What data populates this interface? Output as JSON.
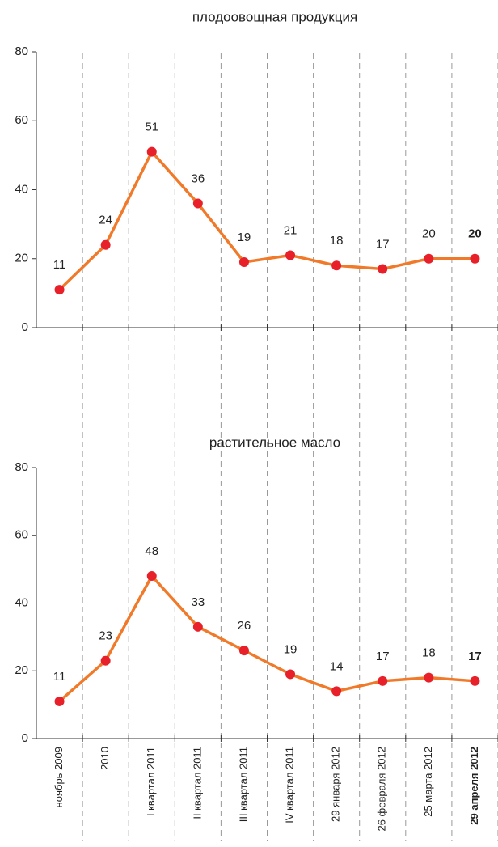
{
  "chart_data": [
    {
      "type": "line",
      "title": "плодоовощная продукция",
      "series": [
        {
          "name": "плодоовощная продукция",
          "line_color": "#f07a2a",
          "marker_color": "#e8202a",
          "values": [
            11,
            24,
            51,
            36,
            19,
            21,
            18,
            17,
            20,
            20
          ]
        }
      ],
      "ylim": [
        0,
        80
      ],
      "yticks": [
        0,
        20,
        40,
        60,
        80
      ]
    },
    {
      "type": "line",
      "title": "растительное масло",
      "categories": [
        "ноябрь 2009",
        "2010",
        "I квартал 2011",
        "II квартал 2011",
        "III квартал 2011",
        "IV квартал 2011",
        "29 января 2012",
        "26 февраля 2012",
        "25 марта 2012",
        "29 апреля 2012"
      ],
      "series": [
        {
          "name": "растительное масло",
          "line_color": "#f07a2a",
          "marker_color": "#e8202a",
          "values": [
            11,
            23,
            48,
            33,
            26,
            19,
            14,
            17,
            18,
            17
          ]
        }
      ],
      "ylim": [
        0,
        80
      ],
      "yticks": [
        0,
        20,
        40,
        60,
        80
      ]
    }
  ]
}
